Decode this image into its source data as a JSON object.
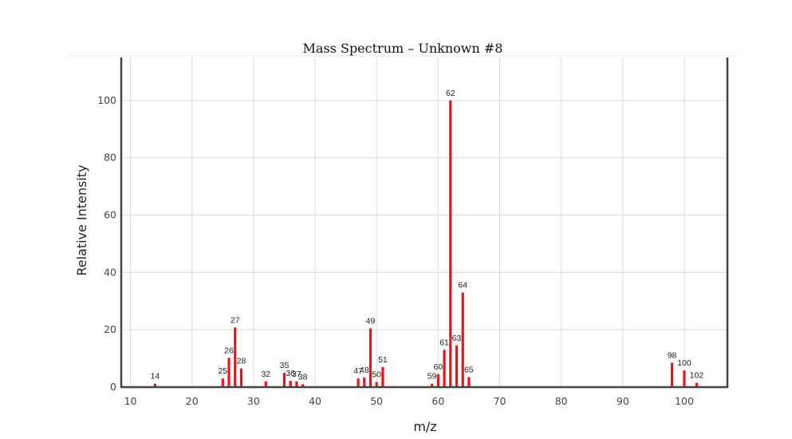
{
  "chart_data": {
    "type": "bar",
    "title": "Mass Spectrum – Unknown #8",
    "xlabel": "m/z",
    "ylabel": "Relative Intensity",
    "xlim": [
      8.5,
      107
    ],
    "ylim": [
      0,
      115
    ],
    "xticks": [
      10,
      20,
      30,
      40,
      50,
      60,
      70,
      80,
      90,
      100
    ],
    "yticks": [
      0,
      20,
      40,
      60,
      80,
      100
    ],
    "grid": true,
    "bar_color": "#e8131b",
    "peaks": [
      {
        "mz": 14,
        "intensity": 1.2
      },
      {
        "mz": 25,
        "intensity": 3.0
      },
      {
        "mz": 26,
        "intensity": 10.2
      },
      {
        "mz": 27,
        "intensity": 20.8
      },
      {
        "mz": 28,
        "intensity": 6.5
      },
      {
        "mz": 32,
        "intensity": 2.0
      },
      {
        "mz": 35,
        "intensity": 5.0
      },
      {
        "mz": 36,
        "intensity": 2.2
      },
      {
        "mz": 37,
        "intensity": 2.0
      },
      {
        "mz": 38,
        "intensity": 1.0
      },
      {
        "mz": 47,
        "intensity": 3.0
      },
      {
        "mz": 48,
        "intensity": 3.4
      },
      {
        "mz": 49,
        "intensity": 20.5
      },
      {
        "mz": 50,
        "intensity": 1.8
      },
      {
        "mz": 51,
        "intensity": 7.0
      },
      {
        "mz": 59,
        "intensity": 1.2
      },
      {
        "mz": 60,
        "intensity": 4.5
      },
      {
        "mz": 61,
        "intensity": 13.0
      },
      {
        "mz": 62,
        "intensity": 100
      },
      {
        "mz": 63,
        "intensity": 14.5
      },
      {
        "mz": 64,
        "intensity": 33.0
      },
      {
        "mz": 65,
        "intensity": 3.5
      },
      {
        "mz": 98,
        "intensity": 8.5
      },
      {
        "mz": 100,
        "intensity": 5.8
      },
      {
        "mz": 102,
        "intensity": 1.5
      }
    ]
  }
}
